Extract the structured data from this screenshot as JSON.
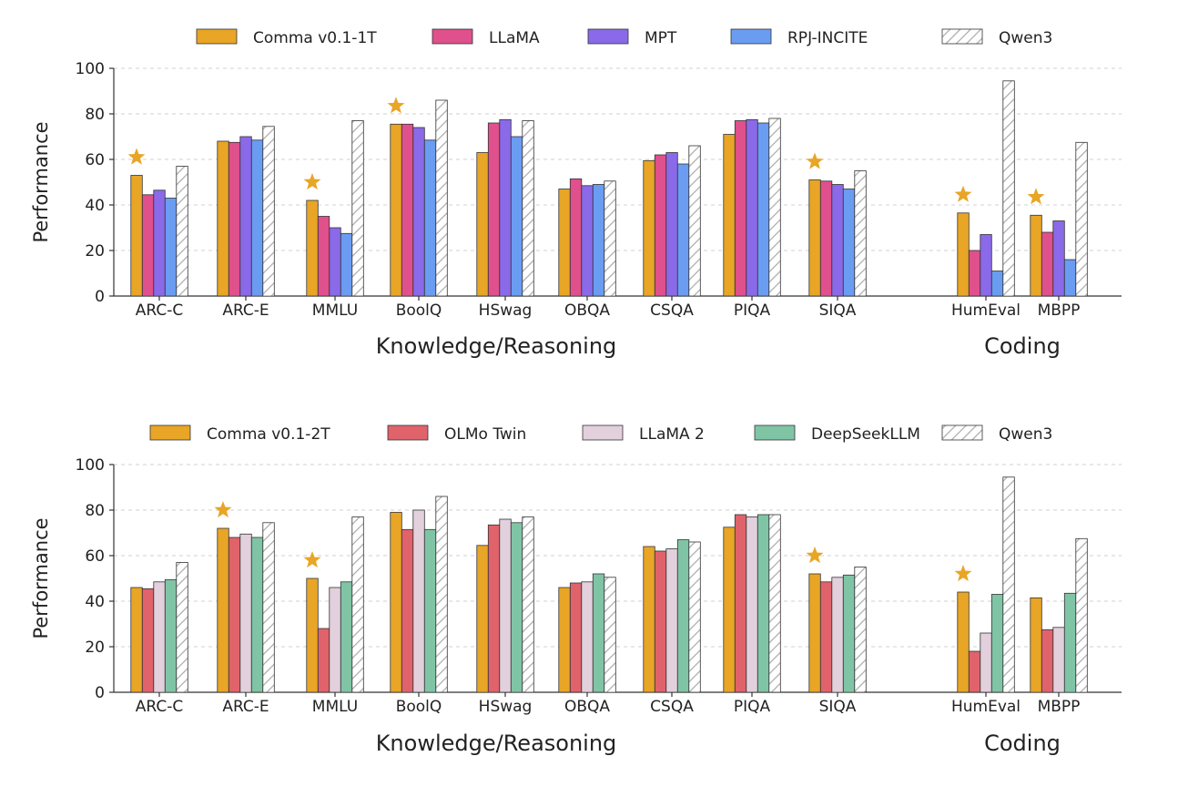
{
  "colors": {
    "comma": "#e8a526",
    "llama": "#e0508c",
    "mpt": "#8a6ae8",
    "rpj": "#6a9cf2",
    "olmo": "#e0636b",
    "llama2": "#e2d0dc",
    "deepseek": "#80c4a6",
    "qwen3_fill": "hatched-white",
    "star": "#e8a526"
  },
  "chart_data": [
    {
      "type": "bar",
      "ylabel": "Performance",
      "ylim": [
        0,
        100
      ],
      "yticks": [
        "0",
        "20",
        "40",
        "60",
        "80",
        "100"
      ],
      "grid": true,
      "legend_position": "top",
      "categories": [
        "ARC-C",
        "ARC-E",
        "MMLU",
        "BoolQ",
        "HSwag",
        "OBQA",
        "CSQA",
        "PIQA",
        "SIQA",
        "HumEval",
        "MBPP"
      ],
      "groups": [
        {
          "label": "Knowledge/Reasoning",
          "categories": [
            "ARC-C",
            "ARC-E",
            "MMLU",
            "BoolQ",
            "HSwag",
            "OBQA",
            "CSQA",
            "PIQA",
            "SIQA"
          ]
        },
        {
          "label": "Coding",
          "categories": [
            "HumEval",
            "MBPP"
          ]
        }
      ],
      "series": [
        {
          "name": "Comma v0.1-1T",
          "color": "#e8a526",
          "values": [
            53,
            68,
            42,
            75.5,
            63,
            47,
            59.5,
            71,
            51,
            36.5,
            35.5
          ]
        },
        {
          "name": "LLaMA",
          "color": "#e0508c",
          "values": [
            44.5,
            67.5,
            35,
            75.5,
            76,
            51.5,
            62,
            77,
            50.5,
            20,
            28
          ]
        },
        {
          "name": "MPT",
          "color": "#8a6ae8",
          "values": [
            46.5,
            70,
            30,
            74,
            77.5,
            48.5,
            63,
            77.5,
            49,
            27,
            33
          ]
        },
        {
          "name": "RPJ-INCITE",
          "color": "#6a9cf2",
          "values": [
            43,
            68.5,
            27.5,
            68.5,
            70,
            49,
            58,
            76,
            47,
            11,
            16
          ]
        },
        {
          "name": "Qwen3",
          "color": "hatched",
          "values": [
            57,
            74.5,
            77,
            86,
            77,
            50.5,
            66,
            78,
            55,
            94.5,
            67.5
          ]
        }
      ],
      "stars": [
        "ARC-C",
        "MMLU",
        "BoolQ",
        "SIQA",
        "HumEval",
        "MBPP"
      ]
    },
    {
      "type": "bar",
      "ylabel": "Performance",
      "ylim": [
        0,
        100
      ],
      "yticks": [
        "0",
        "20",
        "40",
        "60",
        "80",
        "100"
      ],
      "grid": true,
      "legend_position": "top",
      "categories": [
        "ARC-C",
        "ARC-E",
        "MMLU",
        "BoolQ",
        "HSwag",
        "OBQA",
        "CSQA",
        "PIQA",
        "SIQA",
        "HumEval",
        "MBPP"
      ],
      "groups": [
        {
          "label": "Knowledge/Reasoning",
          "categories": [
            "ARC-C",
            "ARC-E",
            "MMLU",
            "BoolQ",
            "HSwag",
            "OBQA",
            "CSQA",
            "PIQA",
            "SIQA"
          ]
        },
        {
          "label": "Coding",
          "categories": [
            "HumEval",
            "MBPP"
          ]
        }
      ],
      "series": [
        {
          "name": "Comma v0.1-2T",
          "color": "#e8a526",
          "values": [
            46,
            72,
            50,
            79,
            64.5,
            46,
            64,
            72.5,
            52,
            44,
            41.5
          ]
        },
        {
          "name": "OLMo Twin",
          "color": "#e0636b",
          "values": [
            45.5,
            68,
            28,
            71.5,
            73.5,
            48,
            62,
            78,
            48.5,
            18,
            27.5
          ]
        },
        {
          "name": "LLaMA 2",
          "color": "#e2d0dc",
          "values": [
            48.5,
            69.5,
            46,
            80,
            76,
            48.5,
            63,
            77,
            50.5,
            26,
            28.5
          ]
        },
        {
          "name": "DeepSeekLLM",
          "color": "#80c4a6",
          "values": [
            49.5,
            68,
            48.5,
            71.5,
            74.5,
            52,
            67,
            78,
            51.5,
            43,
            43.5
          ]
        },
        {
          "name": "Qwen3",
          "color": "hatched",
          "values": [
            57,
            74.5,
            77,
            86,
            77,
            50.5,
            66,
            78,
            55,
            94.5,
            67.5
          ]
        }
      ],
      "stars": [
        "ARC-E",
        "MMLU",
        "SIQA",
        "HumEval"
      ]
    }
  ]
}
